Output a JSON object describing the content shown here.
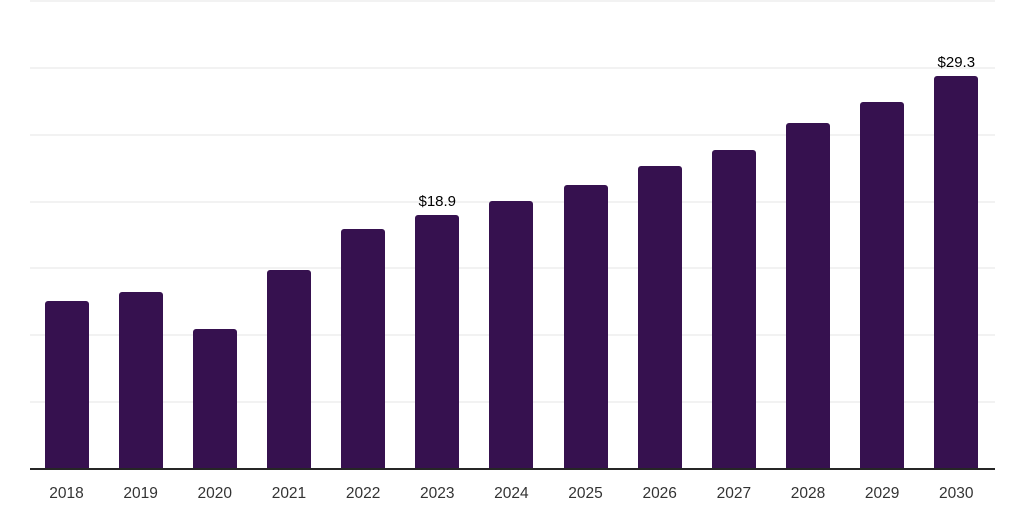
{
  "chart_data": {
    "type": "bar",
    "title": "",
    "xlabel": "",
    "ylabel": "",
    "categories": [
      "2018",
      "2019",
      "2020",
      "2021",
      "2022",
      "2023",
      "2024",
      "2025",
      "2026",
      "2027",
      "2028",
      "2029",
      "2030"
    ],
    "values": [
      12.5,
      13.2,
      10.4,
      14.8,
      17.9,
      18.9,
      20.0,
      21.2,
      22.6,
      23.8,
      25.8,
      27.4,
      29.3
    ],
    "data_labels": {
      "2023": "$18.9",
      "2030": "$29.3"
    },
    "ylim": [
      0,
      35
    ],
    "grid": true,
    "grid_step": 5,
    "legend": false,
    "colors": {
      "bar": "#36114F",
      "gridline": "#f2f2f2",
      "axis_line": "#262626",
      "tick_label": "#333333",
      "data_label": "#000000",
      "background": "#ffffff"
    }
  }
}
